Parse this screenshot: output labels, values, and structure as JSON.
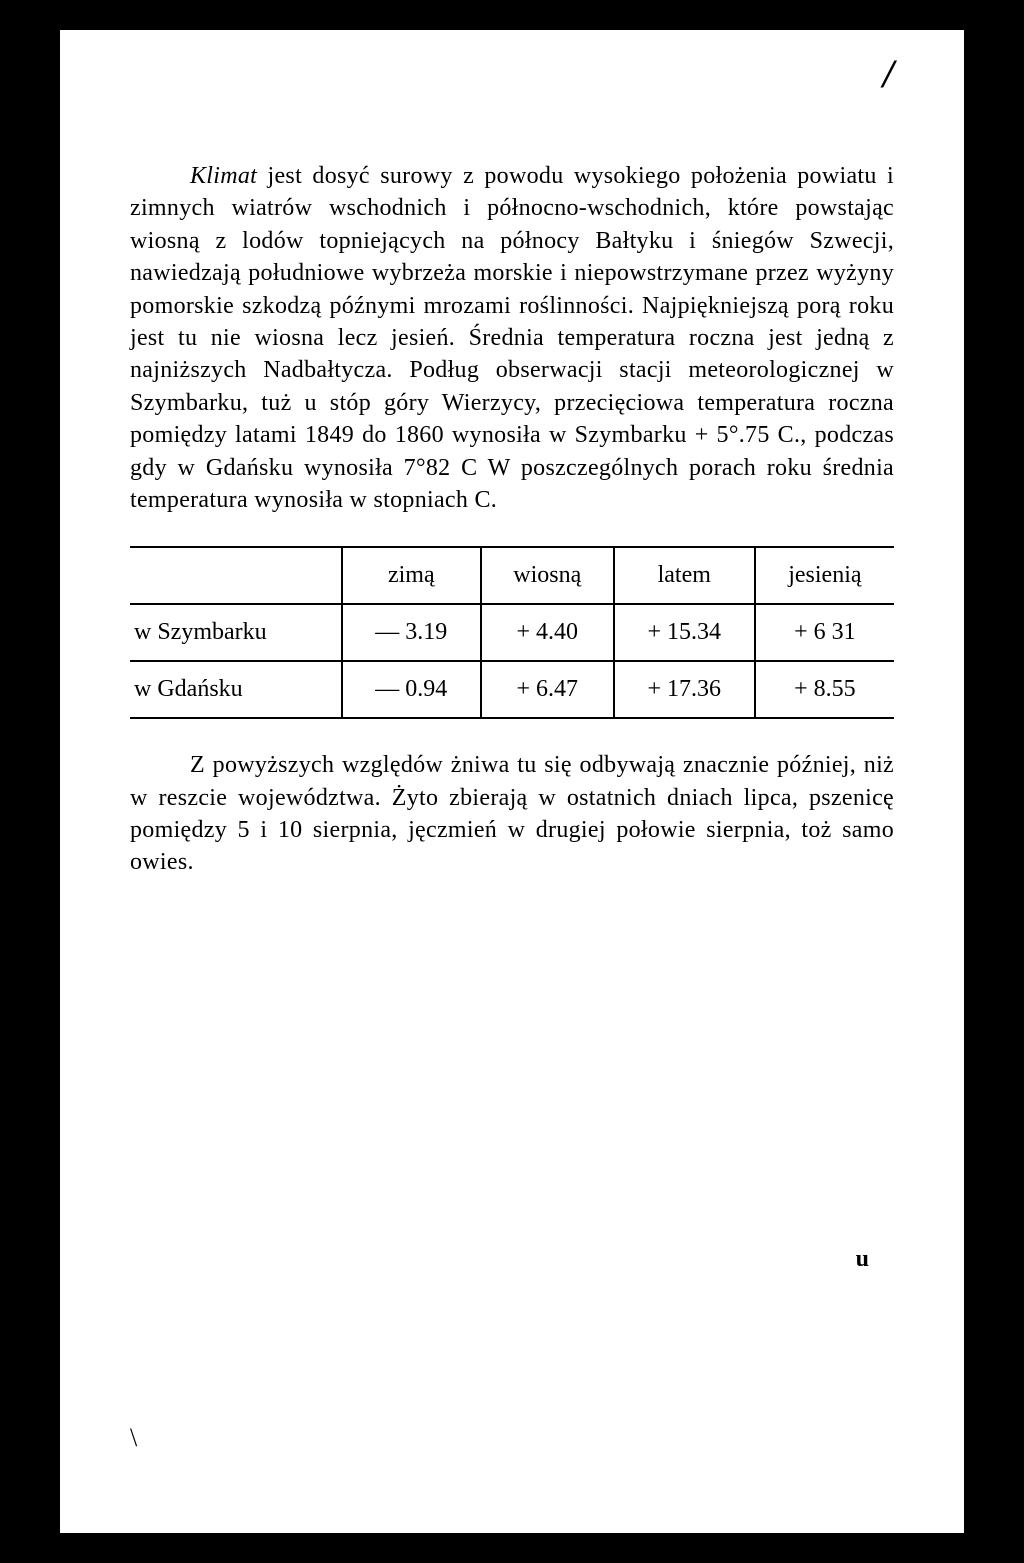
{
  "mark": "/",
  "paragraph1_prefix_italic": "Klimat",
  "paragraph1_rest": " jest dosyć surowy z powodu wysokiego położenia powiatu i zimnych wiatrów wschodnich i północno-wschodnich, które powstając wiosną z lodów topniejących na północy Bałtyku i śniegów Szwecji, nawiedzają południowe wybrzeża morskie i niepowstrzymane przez wyżyny pomorskie szkodzą późnymi mrozami roślinności. Najpiękniejszą porą roku jest tu nie wiosna lecz jesień. Średnia temperatura roczna jest jedną z najniższych Nadbałtycza. Podług obserwacji stacji meteorologicznej w Szymbarku, tuż u stóp góry Wierzycy, przecięciowa temperatura roczna pomiędzy latami 1849 do 1860 wynosiła w Szymbarku + 5°.75 C., podczas gdy w Gdańsku wynosiła 7°82 C  W poszczególnych porach roku średnia temperatura wynosiła w stopniach C.",
  "table": {
    "headers": [
      "",
      "zimą",
      "wiosną",
      "latem",
      "jesienią"
    ],
    "rows": [
      {
        "label": "w Szymbarku",
        "cells": [
          "— 3.19",
          "+ 4.40",
          "+ 15.34",
          "+ 6 31"
        ]
      },
      {
        "label": "w Gdańsku",
        "cells": [
          "— 0.94",
          "+ 6.47",
          "+ 17.36",
          "+ 8.55"
        ]
      }
    ]
  },
  "paragraph2": "Z powyższych względów żniwa tu się odbywają znacznie później, niż w reszcie województwa. Żyto zbierają w ostatnich dniach lipca, pszenicę pomiędzy 5 i 10 sierpnia, jęczmień w drugiej połowie sierpnia, toż samo owies.",
  "bottom_left": "\\",
  "bottom_right": "u"
}
